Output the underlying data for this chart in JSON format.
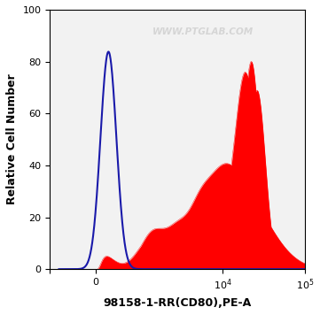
{
  "title": "",
  "xlabel": "98158-1-RR(CD80),PE-A",
  "ylabel": "Relative Cell Number",
  "watermark": "WWW.PTGLAB.COM",
  "bg_color": "#ffffff",
  "plot_bg_color": "#f2f2f2",
  "blue_color": "#1a1aaa",
  "red_color": "#ff0000",
  "ylim_min": 0,
  "ylim_max": 100,
  "linthresh": 1000,
  "linscale": 0.5
}
